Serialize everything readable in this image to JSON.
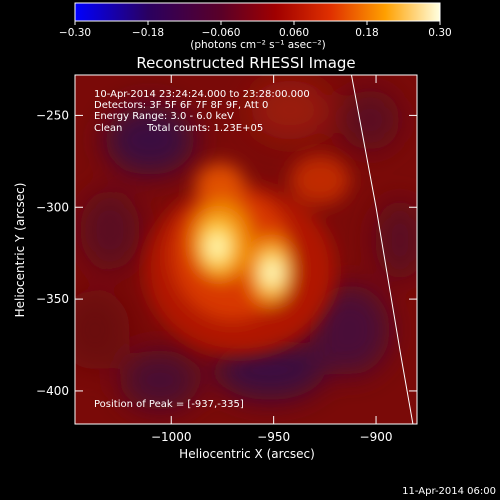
{
  "chart_data": {
    "type": "heatmap",
    "title": "Reconstructed RHESSI Image",
    "xlabel": "Heliocentric X (arcsec)",
    "ylabel": "Heliocentric Y (arcsec)",
    "xlim": [
      -1047,
      -880
    ],
    "ylim": [
      -418,
      -228
    ],
    "x_ticks": [
      -1000,
      -950,
      -900
    ],
    "y_ticks": [
      -250,
      -300,
      -350,
      -400
    ],
    "colorbar": {
      "range": [
        -0.3,
        0.3
      ],
      "ticks": [
        -0.3,
        -0.18,
        -0.06,
        0.06,
        0.18,
        0.3
      ],
      "tick_labels": [
        "-0.30",
        "-0.18",
        "-0.060",
        "0.060",
        "0.18",
        "0.30"
      ],
      "unit_label": "(photons cm⁻² s⁻¹ asec⁻²)"
    },
    "annotations": {
      "time_range": "10-Apr-2014 23:24:24.000 to 23:28:00.000",
      "detectors": "Detectors: 3F 5F 6F 7F 8F 9F, Att 0",
      "energy": "Energy Range: 3.0 - 6.0 keV",
      "method": "Clean",
      "counts": "Total counts: 1.23E+05",
      "peak": "Position of Peak = [-937,-335]"
    },
    "peak_position": [
      -937,
      -335
    ],
    "sources": [
      {
        "x": -967,
        "y": -324,
        "intensity": 0.24
      },
      {
        "x": -937,
        "y": -335,
        "intensity": 0.26
      },
      {
        "x": -980,
        "y": -282,
        "intensity": 0.16
      },
      {
        "x": -912,
        "y": -282,
        "intensity": 0.14
      }
    ],
    "limb_line": [
      {
        "x": -912,
        "y": -228
      },
      {
        "x": -900,
        "y": -300
      },
      {
        "x": -888,
        "y": -380
      },
      {
        "x": -882,
        "y": -418
      }
    ],
    "timestamp": "11-Apr-2014 06:00"
  }
}
